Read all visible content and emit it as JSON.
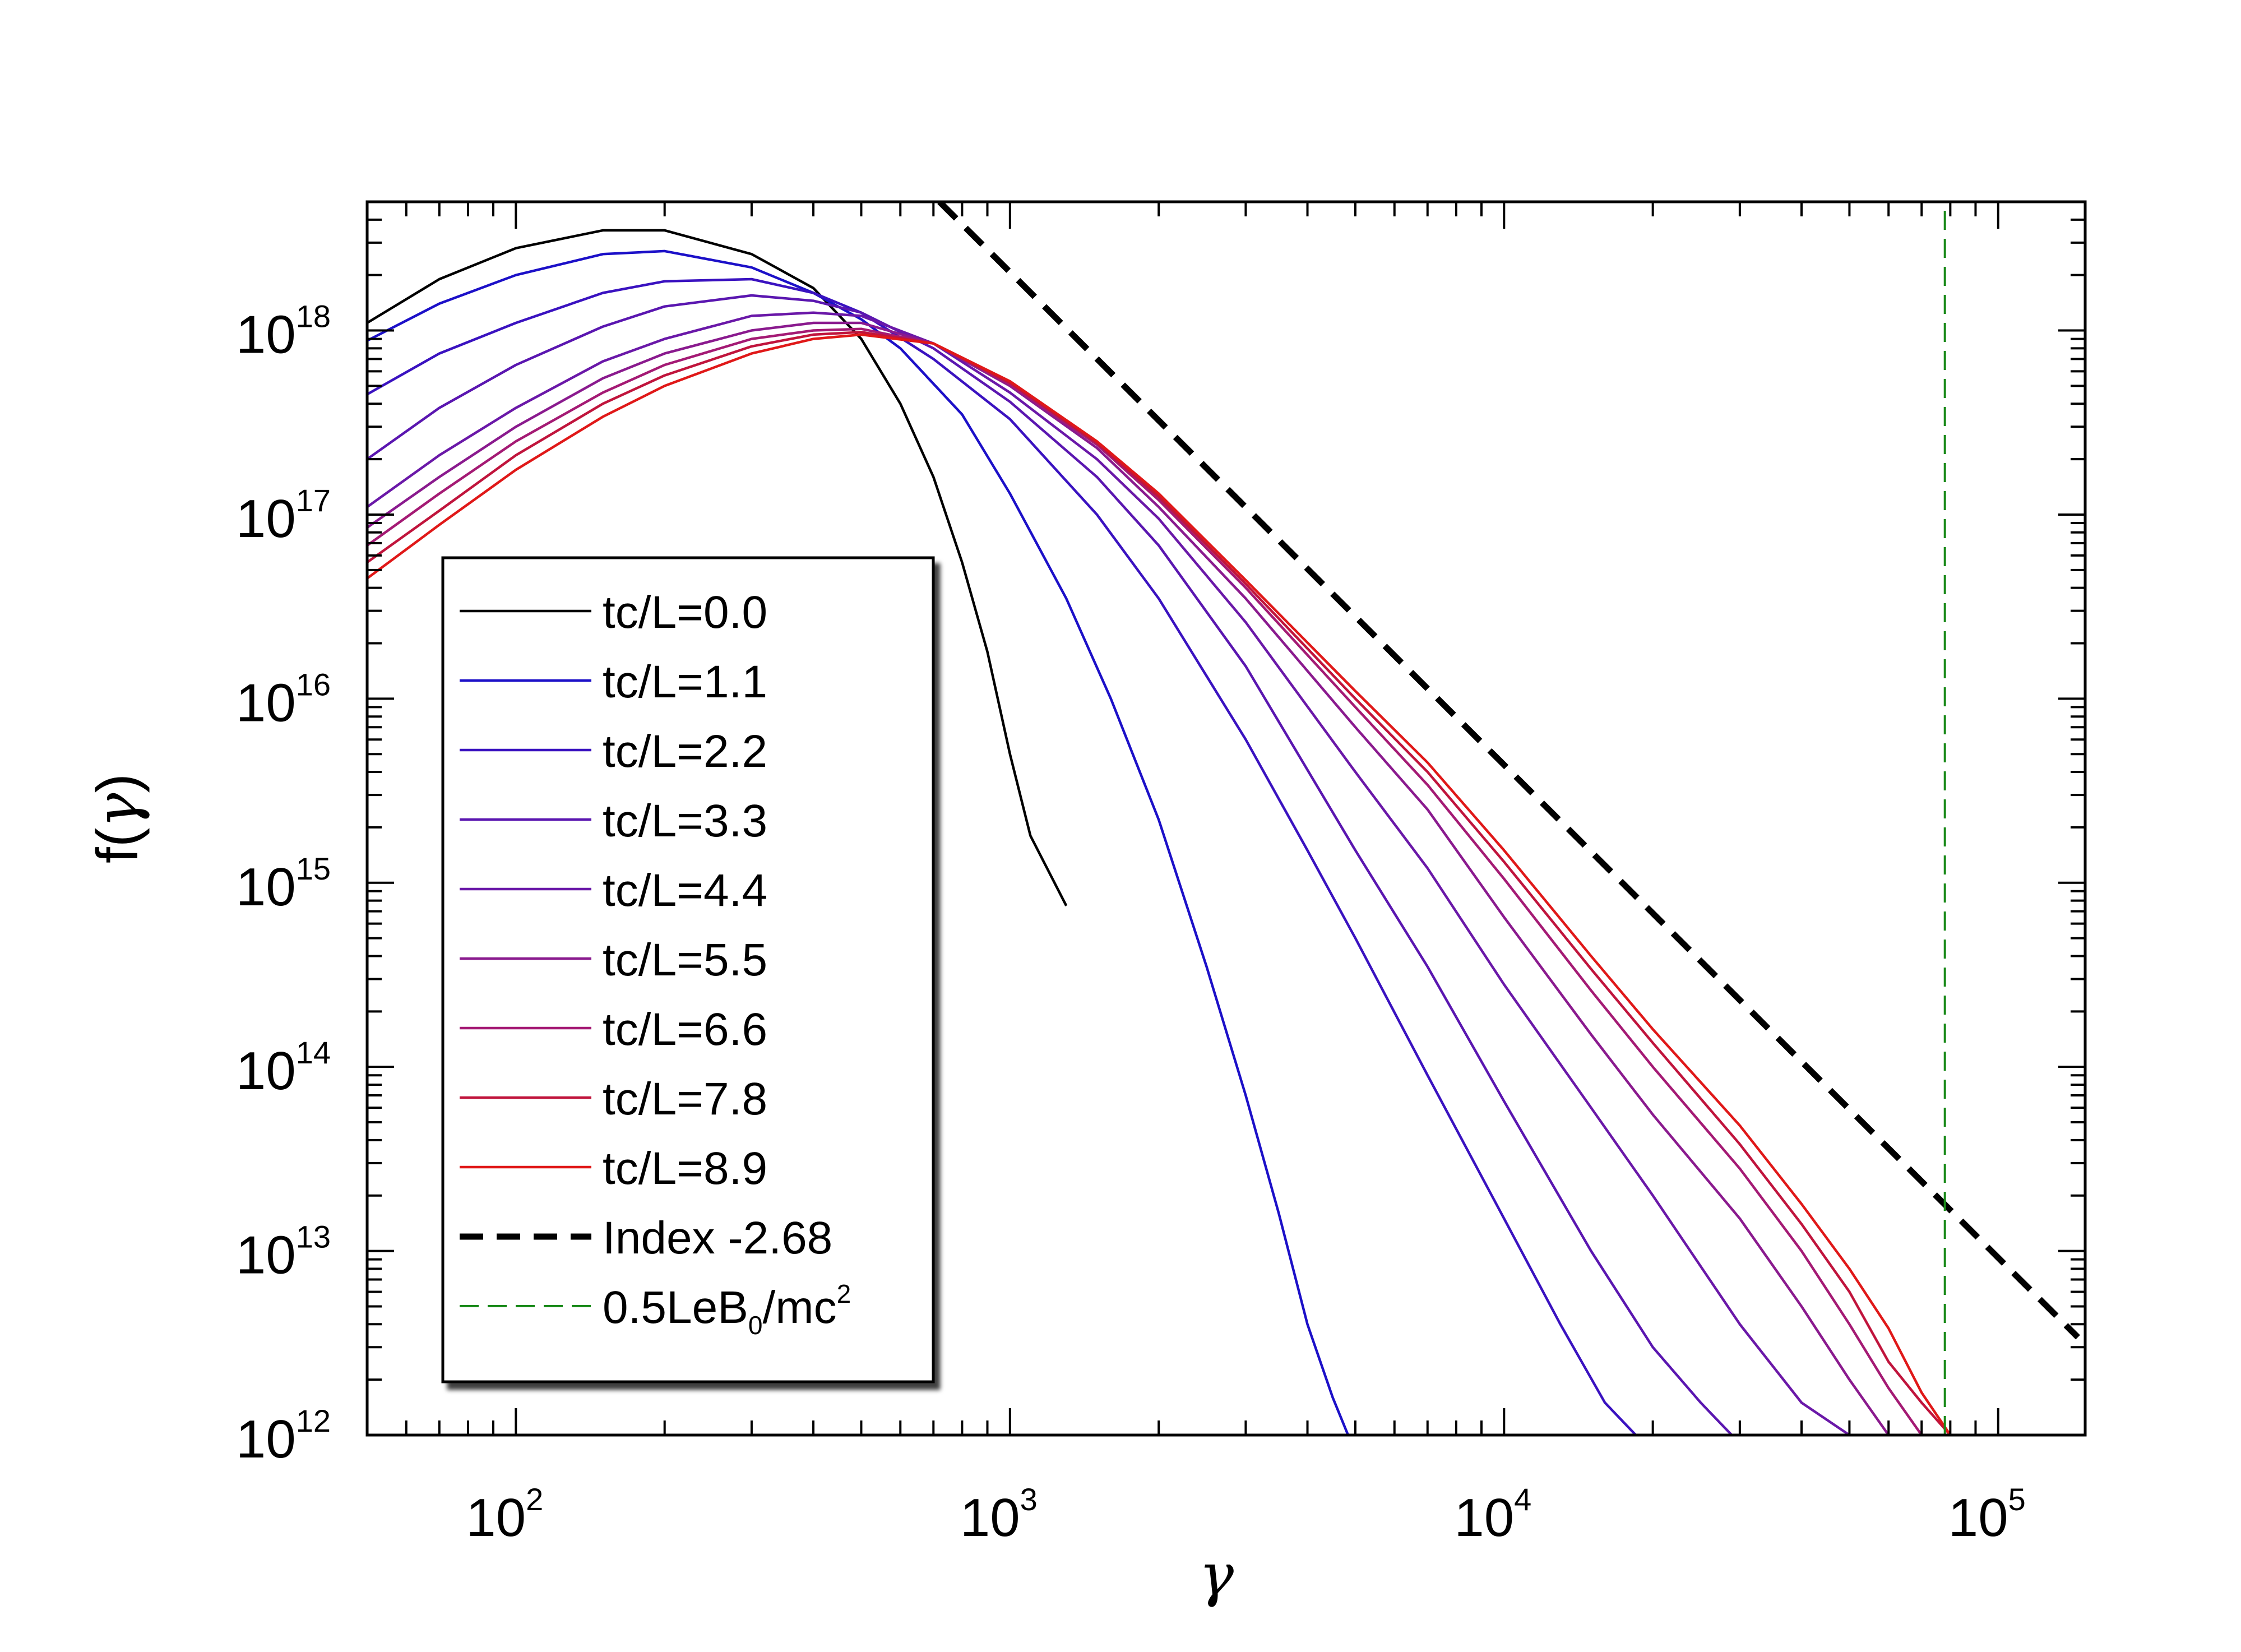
{
  "chart_data": {
    "type": "line",
    "title": "",
    "xlabel": "γ",
    "ylabel": "f(γ)",
    "xscale": "log",
    "yscale": "log",
    "xlim": [
      50,
      150000
    ],
    "ylim": [
      1000000000000.0,
      5e+18
    ],
    "grid": false,
    "legend_position": "lower-left",
    "x_ticks": [
      {
        "base": "10",
        "exp": "2",
        "value": 100
      },
      {
        "base": "10",
        "exp": "3",
        "value": 1000
      },
      {
        "base": "10",
        "exp": "4",
        "value": 10000
      },
      {
        "base": "10",
        "exp": "5",
        "value": 100000
      }
    ],
    "y_ticks": [
      {
        "base": "10",
        "exp": "12",
        "value": 1000000000000.0
      },
      {
        "base": "10",
        "exp": "13",
        "value": 10000000000000.0
      },
      {
        "base": "10",
        "exp": "14",
        "value": 100000000000000.0
      },
      {
        "base": "10",
        "exp": "15",
        "value": 1000000000000000.0
      },
      {
        "base": "10",
        "exp": "16",
        "value": 1e+16
      },
      {
        "base": "10",
        "exp": "17",
        "value": 1e+17
      },
      {
        "base": "10",
        "exp": "18",
        "value": 1e+18
      }
    ],
    "series": [
      {
        "name": "tc/L=0.0",
        "color": "#000000",
        "dash": "solid",
        "x": [
          50,
          70,
          100,
          150,
          200,
          300,
          400,
          500,
          600,
          700,
          800,
          900,
          1000,
          1100,
          1300
        ],
        "y": [
          1.1e+18,
          1.9e+18,
          2.8e+18,
          3.5e+18,
          3.5e+18,
          2.6e+18,
          1.7e+18,
          9e+17,
          4e+17,
          1.6e+17,
          5.5e+16,
          1.8e+16,
          5000000000000000.0,
          1800000000000000.0,
          750000000000000.0
        ]
      },
      {
        "name": "tc/L=1.1",
        "color": "#1c10c8",
        "dash": "solid",
        "x": [
          50,
          70,
          100,
          150,
          200,
          300,
          400,
          500,
          600,
          800,
          1000,
          1300,
          1600,
          2000,
          2500,
          3000,
          3500,
          4000,
          4500,
          5000
        ],
        "y": [
          8.8e+17,
          1.4e+18,
          2e+18,
          2.6e+18,
          2.7e+18,
          2.2e+18,
          1.6e+18,
          1.15e+18,
          8e+17,
          3.5e+17,
          1.3e+17,
          3.5e+16,
          1e+16,
          2200000000000000.0,
          350000000000000.0,
          70000000000000.0,
          16000000000000.0,
          4000000000000.0,
          1600000000000.0,
          800000000000.0
        ]
      },
      {
        "name": "tc/L=2.2",
        "color": "#3a12c0",
        "dash": "solid",
        "x": [
          50,
          70,
          100,
          150,
          200,
          300,
          400,
          500,
          700,
          1000,
          1500,
          2000,
          3000,
          4000,
          5000,
          7000,
          10000,
          13000,
          16000,
          20000
        ],
        "y": [
          4.5e+17,
          7.5e+17,
          1.1e+18,
          1.6e+18,
          1.85e+18,
          1.9e+18,
          1.6e+18,
          1.25e+18,
          7e+17,
          3.3e+17,
          1e+17,
          3.5e+16,
          6000000000000000.0,
          1500000000000000.0,
          500000000000000.0,
          90000000000000.0,
          15000000000000.0,
          4000000000000.0,
          1500000000000.0,
          800000000000.0
        ]
      },
      {
        "name": "tc/L=3.3",
        "color": "#5a16b0",
        "dash": "solid",
        "x": [
          50,
          70,
          100,
          150,
          200,
          300,
          400,
          500,
          700,
          1000,
          1500,
          2000,
          3000,
          5000,
          7000,
          10000,
          15000,
          20000,
          25000,
          30000,
          35000
        ],
        "y": [
          2e+17,
          3.8e+17,
          6.5e+17,
          1.05e+18,
          1.35e+18,
          1.55e+18,
          1.45e+18,
          1.25e+18,
          8e+17,
          4.1e+17,
          1.6e+17,
          6.8e+16,
          1.5e+16,
          1500000000000000.0,
          350000000000000.0,
          65000000000000.0,
          10000000000000.0,
          3000000000000.0,
          1500000000000.0,
          900000000000.0,
          700000000000.0
        ]
      },
      {
        "name": "tc/L=4.4",
        "color": "#6a18a8",
        "dash": "solid",
        "x": [
          50,
          70,
          100,
          150,
          200,
          300,
          400,
          500,
          700,
          1000,
          1500,
          2000,
          3000,
          5000,
          7000,
          10000,
          15000,
          20000,
          30000,
          40000,
          50000,
          55000,
          60000
        ],
        "y": [
          1.1e+17,
          2.1e+17,
          3.8e+17,
          6.8e+17,
          9e+17,
          1.2e+18,
          1.25e+18,
          1.2e+18,
          8.5e+17,
          4.6e+17,
          2e+17,
          9.5e+16,
          2.6e+16,
          4000000000000000.0,
          1200000000000000.0,
          280000000000000.0,
          60000000000000.0,
          20000000000000.0,
          4000000000000.0,
          1500000000000.0,
          1000000000000.0,
          800000000000.0,
          600000000000.0
        ]
      },
      {
        "name": "tc/L=5.5",
        "color": "#8a1a8e",
        "dash": "solid",
        "x": [
          50,
          70,
          100,
          150,
          200,
          300,
          400,
          500,
          700,
          1000,
          1500,
          2000,
          3000,
          5000,
          7000,
          10000,
          15000,
          20000,
          30000,
          40000,
          50000,
          60000,
          65000,
          70000
        ],
        "y": [
          8.5e+16,
          1.6e+17,
          3e+17,
          5.5e+17,
          7.5e+17,
          1e+18,
          1.1e+18,
          1.1e+18,
          8.5e+17,
          5e+17,
          2.3e+17,
          1.1e+17,
          3.5e+16,
          7000000000000000.0,
          2500000000000000.0,
          650000000000000.0,
          150000000000000.0,
          55000000000000.0,
          15000000000000.0,
          5000000000000.0,
          2000000000000.0,
          1000000000000.0,
          800000000000.0,
          600000000000.0
        ]
      },
      {
        "name": "tc/L=6.6",
        "color": "#a41a74",
        "dash": "solid",
        "x": [
          50,
          70,
          100,
          150,
          200,
          300,
          400,
          500,
          700,
          1000,
          1500,
          2000,
          3000,
          5000,
          7000,
          10000,
          15000,
          20000,
          30000,
          40000,
          50000,
          60000,
          70000,
          75000,
          80000
        ],
        "y": [
          6.8e+16,
          1.3e+17,
          2.5e+17,
          4.6e+17,
          6.5e+17,
          9e+17,
          1e+18,
          1.02e+18,
          8.5e+17,
          5.1e+17,
          2.4e+17,
          1.2e+17,
          4e+16,
          9000000000000000.0,
          3400000000000000.0,
          1050000000000000.0,
          260000000000000.0,
          100000000000000.0,
          28000000000000.0,
          10000000000000.0,
          4000000000000.0,
          1800000000000.0,
          1000000000000.0,
          800000000000.0,
          600000000000.0
        ]
      },
      {
        "name": "tc/L=7.8",
        "color": "#c0143c",
        "dash": "solid",
        "x": [
          50,
          70,
          100,
          150,
          200,
          300,
          400,
          500,
          700,
          1000,
          1500,
          2000,
          3000,
          5000,
          7000,
          10000,
          15000,
          20000,
          30000,
          40000,
          50000,
          60000,
          70000,
          80000,
          85000,
          90000
        ],
        "y": [
          5.5e+16,
          1.05e+17,
          2.1e+17,
          4e+17,
          5.7e+17,
          8.2e+17,
          9.5e+17,
          9.8e+17,
          8.5e+17,
          5.2e+17,
          2.45e+17,
          1.25e+17,
          4.2e+16,
          1e+16,
          4000000000000000.0,
          1300000000000000.0,
          340000000000000.0,
          135000000000000.0,
          38000000000000.0,
          14000000000000.0,
          6000000000000.0,
          2500000000000.0,
          1500000000000.0,
          1000000000000.0,
          800000000000.0,
          600000000000.0
        ]
      },
      {
        "name": "tc/L=8.9",
        "color": "#e01818",
        "dash": "solid",
        "x": [
          50,
          70,
          100,
          150,
          200,
          300,
          400,
          500,
          700,
          1000,
          1500,
          2000,
          3000,
          5000,
          7000,
          10000,
          15000,
          20000,
          30000,
          40000,
          50000,
          60000,
          70000,
          80000,
          90000,
          95000
        ],
        "y": [
          4.5e+16,
          8.8e+16,
          1.75e+17,
          3.4e+17,
          5e+17,
          7.5e+17,
          9e+17,
          9.5e+17,
          8.5e+17,
          5.3e+17,
          2.5e+17,
          1.3e+17,
          4.4e+16,
          1.1e+16,
          4500000000000000.0,
          1500000000000000.0,
          400000000000000.0,
          160000000000000.0,
          48000000000000.0,
          18000000000000.0,
          8000000000000.0,
          3800000000000.0,
          1700000000000.0,
          1000000000000.0,
          700000000000.0,
          600000000000.0
        ]
      },
      {
        "name": "Index -2.68",
        "color": "#000000",
        "dash": "dashed-thick",
        "x": [
          720,
          145000
        ],
        "y": [
          5e+18,
          3400000000000.0
        ]
      },
      {
        "name": "0.5LeB0/mc2",
        "color": "#1a8a1a",
        "dash": "dashed-thin",
        "vertical_x": 78000,
        "x": [
          78000,
          78000
        ],
        "y": [
          1000000000000.0,
          5e+18
        ]
      }
    ],
    "legend": {
      "entries": [
        "tc/L=0.0",
        "tc/L=1.1",
        "tc/L=2.2",
        "tc/L=3.3",
        "tc/L=4.4",
        "tc/L=5.5",
        "tc/L=6.6",
        "tc/L=7.8",
        "tc/L=8.9",
        "Index -2.68"
      ],
      "last_entry_prefix": "0.5LeB",
      "last_entry_sub": "0",
      "last_entry_mid": "/mc",
      "last_entry_sup": "2"
    }
  }
}
